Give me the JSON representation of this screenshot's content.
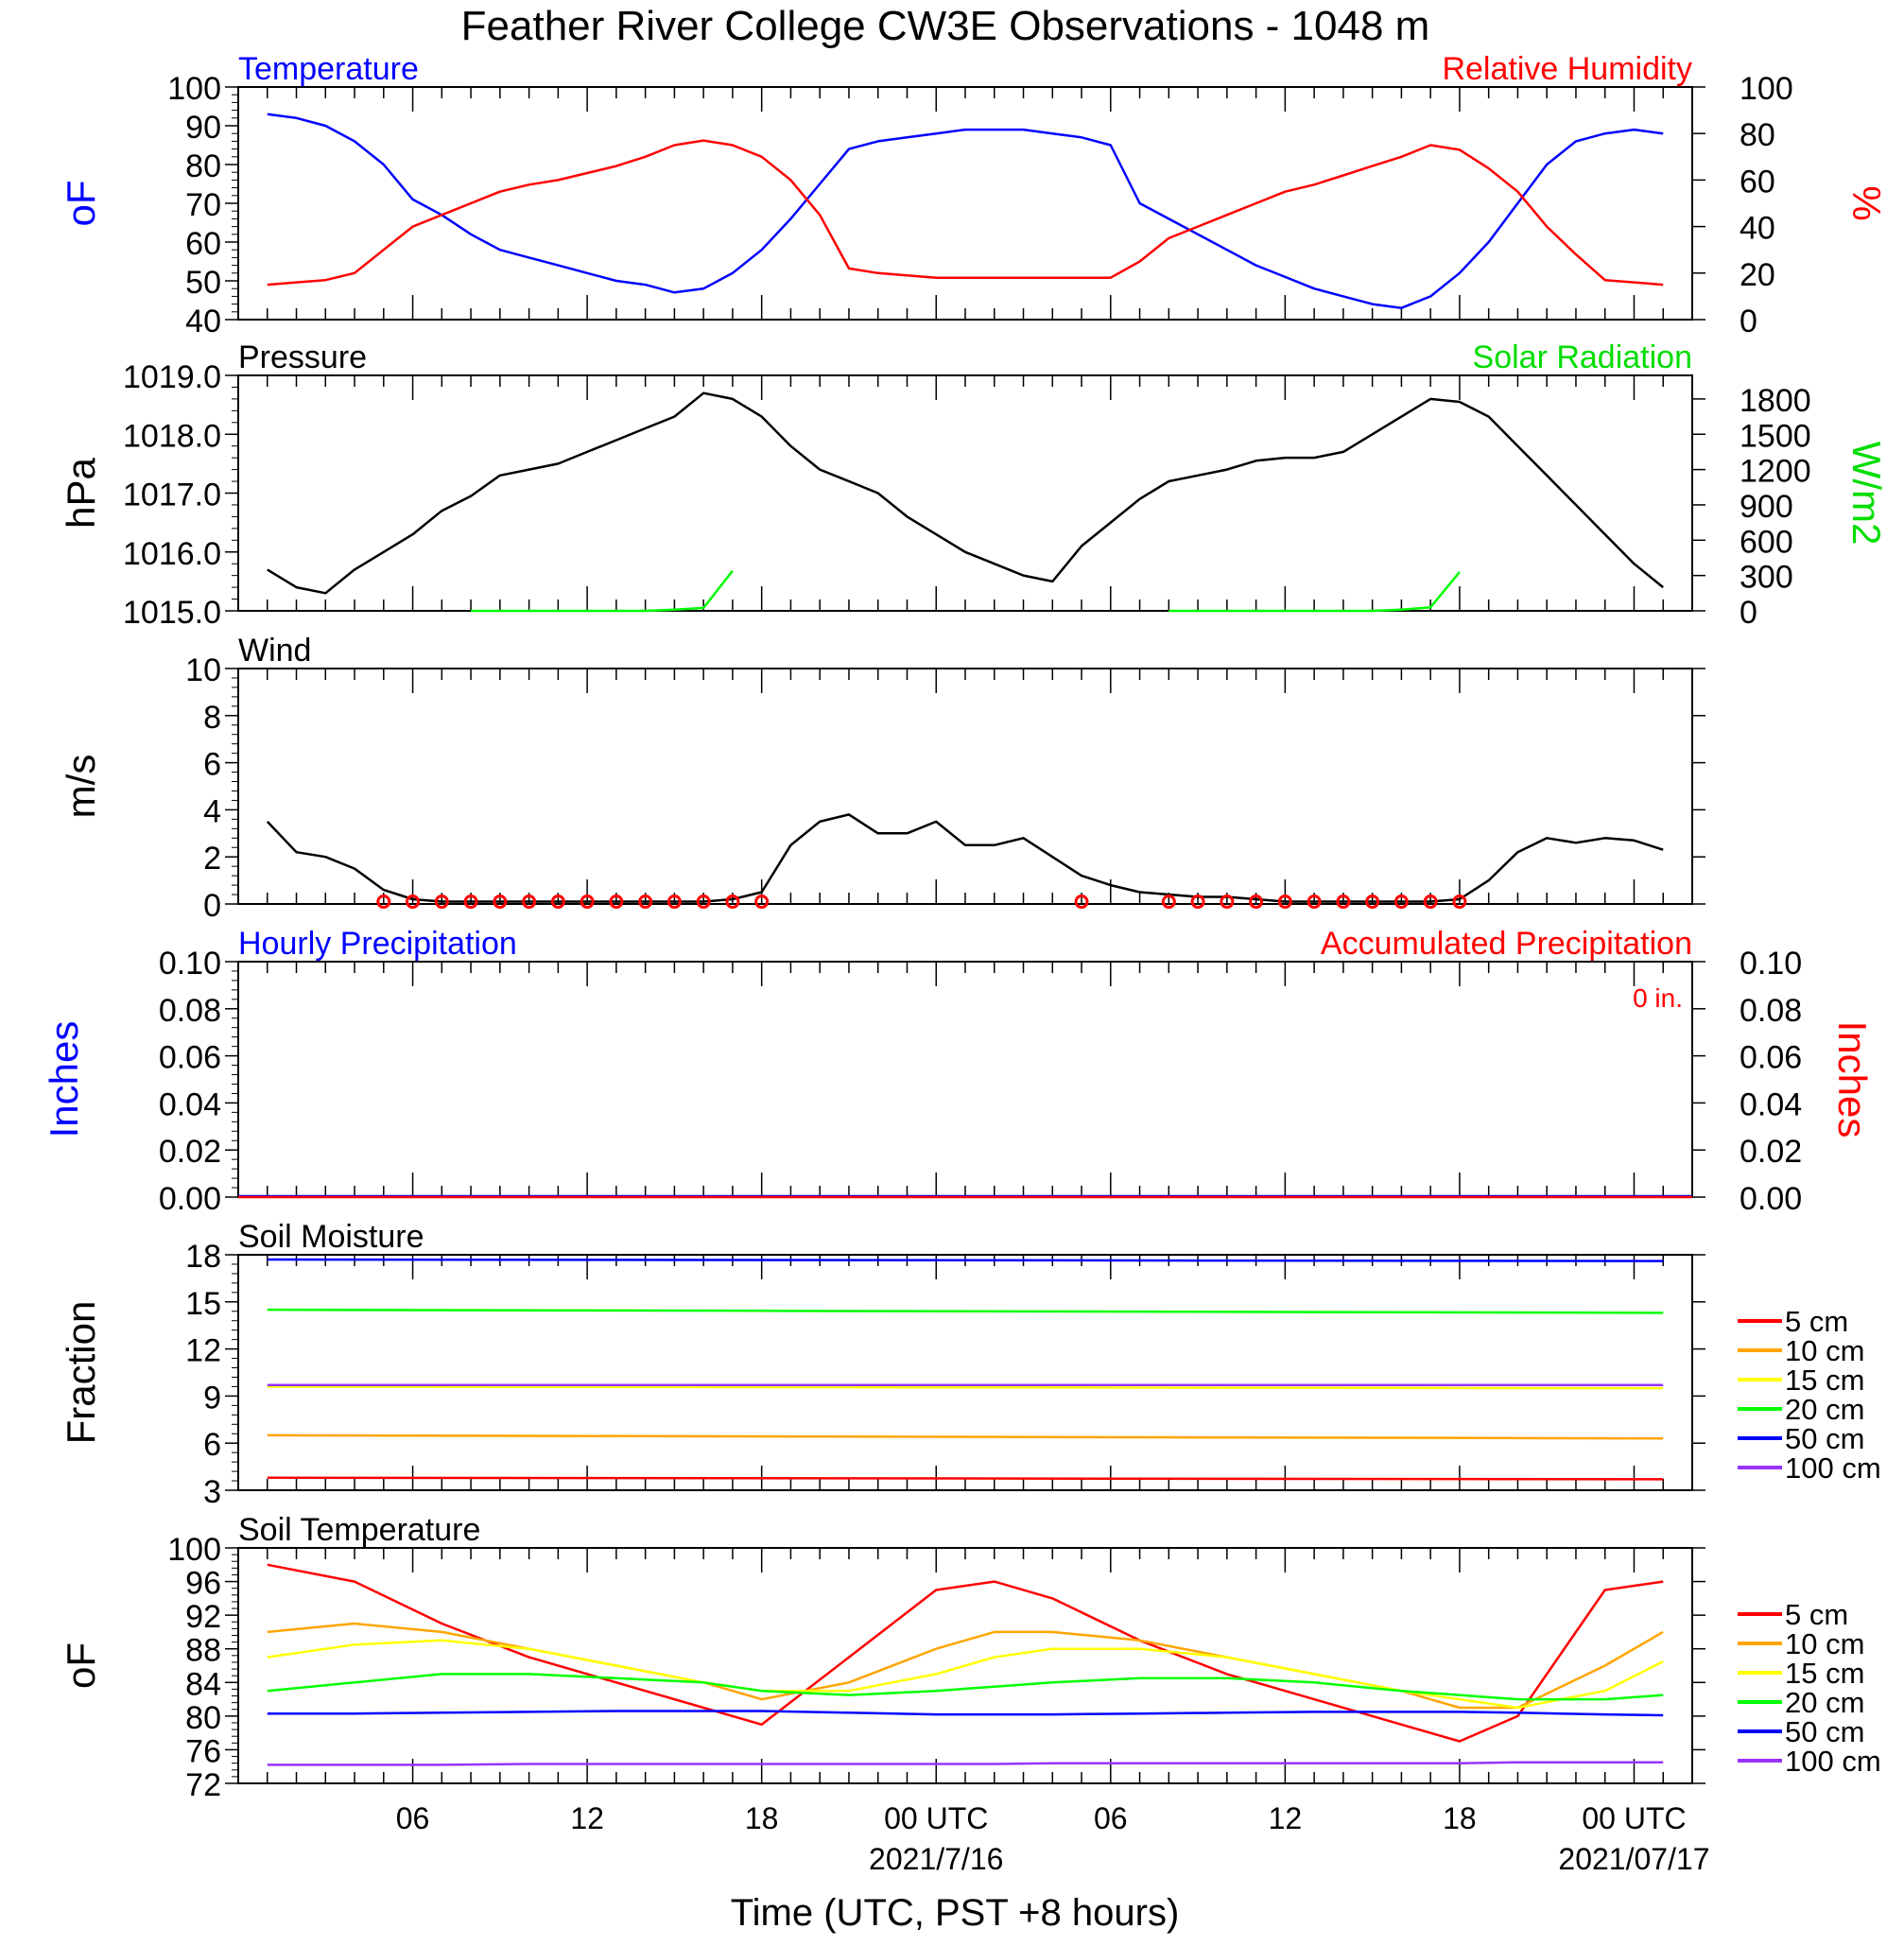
{
  "title": "Feather River College CW3E Observations - 1048 m",
  "x_axis": {
    "ticks": [
      "06",
      "12",
      "18",
      "00 UTC",
      "06",
      "12",
      "18",
      "00 UTC"
    ],
    "dates": [
      "2021/7/16",
      "2021/07/17"
    ],
    "label": "Time (UTC, PST +8 hours)"
  },
  "chart_data": [
    {
      "id": "temp_rh",
      "type": "line",
      "left_title": "Temperature",
      "right_title": "Relative Humidity",
      "left_ylabel": "oF",
      "right_ylabel": "%",
      "left_ylim": [
        40,
        100
      ],
      "right_ylim": [
        0,
        100
      ],
      "left_ticks": [
        "40",
        "50",
        "60",
        "70",
        "80",
        "90",
        "100"
      ],
      "right_ticks": [
        "0",
        "20",
        "40",
        "60",
        "80",
        "100"
      ],
      "x_hours": [
        1,
        2,
        3,
        4,
        5,
        6,
        7,
        8,
        9,
        10,
        11,
        12,
        13,
        14,
        15,
        16,
        17,
        18,
        19,
        20,
        21,
        22,
        23,
        24,
        25,
        26,
        27,
        28,
        29,
        30,
        31,
        32,
        33,
        34,
        35,
        36,
        37,
        38,
        39,
        40,
        41,
        42,
        43,
        44,
        45,
        46,
        47,
        48,
        49
      ],
      "series": [
        {
          "name": "Temperature",
          "color": "#0000ff",
          "axis": "left",
          "values": [
            93,
            92,
            90,
            86,
            80,
            71,
            67,
            62,
            58,
            56,
            54,
            52,
            50,
            49,
            47,
            48,
            52,
            58,
            66,
            75,
            84,
            86,
            87,
            88,
            89,
            89,
            89,
            88,
            87,
            85,
            70,
            66,
            62,
            58,
            54,
            51,
            48,
            46,
            44,
            43,
            46,
            52,
            60,
            70,
            80,
            86,
            88,
            89,
            88
          ]
        },
        {
          "name": "Relative Humidity",
          "color": "#ff0000",
          "axis": "right",
          "values": [
            15,
            16,
            17,
            20,
            30,
            40,
            45,
            50,
            55,
            58,
            60,
            63,
            66,
            70,
            75,
            77,
            75,
            70,
            60,
            45,
            22,
            20,
            19,
            18,
            18,
            18,
            18,
            18,
            18,
            18,
            25,
            35,
            40,
            45,
            50,
            55,
            58,
            62,
            66,
            70,
            75,
            73,
            65,
            55,
            40,
            28,
            17,
            16,
            15
          ]
        }
      ]
    },
    {
      "id": "pressure_solar",
      "type": "line",
      "left_title": "Pressure",
      "right_title": "Solar Radiation",
      "left_ylabel": "hPa",
      "right_ylabel": "W/m2",
      "left_ylim": [
        1015.0,
        1019.0
      ],
      "right_ylim": [
        0,
        2000
      ],
      "left_ticks": [
        "1015.0",
        "1016.0",
        "1017.0",
        "1018.0",
        "1019.0"
      ],
      "right_ticks": [
        "0",
        "300",
        "600",
        "900",
        "1200",
        "1500",
        "1800"
      ],
      "x_hours": [
        1,
        2,
        3,
        4,
        5,
        6,
        7,
        8,
        9,
        10,
        11,
        12,
        13,
        14,
        15,
        16,
        17,
        18,
        19,
        20,
        21,
        22,
        23,
        24,
        25,
        26,
        27,
        28,
        29,
        30,
        31,
        32,
        33,
        34,
        35,
        36,
        37,
        38,
        39,
        40,
        41,
        42,
        43,
        44,
        45,
        46,
        47,
        48,
        49
      ],
      "series": [
        {
          "name": "Pressure",
          "color": "#000000",
          "axis": "left",
          "values": [
            1015.7,
            1015.4,
            1015.3,
            1015.7,
            1016.0,
            1016.3,
            1016.7,
            1016.95,
            1017.3,
            1017.4,
            1017.5,
            1017.7,
            1017.9,
            1018.1,
            1018.3,
            1018.7,
            1018.6,
            1018.3,
            1017.8,
            1017.4,
            1017.2,
            1017.0,
            1016.6,
            1016.3,
            1016.0,
            1015.8,
            1015.6,
            1015.5,
            1016.1,
            1016.5,
            1016.9,
            1017.2,
            1017.3,
            1017.4,
            1017.55,
            1017.6,
            1017.6,
            1017.7,
            1018.0,
            1018.3,
            1018.6,
            1018.55,
            1018.3,
            1017.8,
            1017.3,
            1016.8,
            1016.3,
            1015.8,
            1015.4
          ]
        },
        {
          "name": "Solar Radiation",
          "color": "#00ff00",
          "axis": "right",
          "values": [
            null,
            null,
            null,
            null,
            null,
            null,
            null,
            0,
            0,
            0,
            0,
            0,
            0,
            0,
            10,
            25,
            340,
            null,
            null,
            null,
            null,
            null,
            null,
            null,
            null,
            null,
            null,
            null,
            null,
            null,
            null,
            0,
            0,
            0,
            0,
            0,
            0,
            0,
            0,
            10,
            30,
            330,
            null,
            null,
            null,
            null,
            null,
            null,
            null
          ]
        }
      ]
    },
    {
      "id": "wind",
      "type": "line",
      "left_title": "Wind",
      "left_ylabel": "m/s",
      "left_ylim": [
        0,
        10
      ],
      "left_ticks": [
        "0",
        "2",
        "4",
        "6",
        "8",
        "10"
      ],
      "x_hours": [
        1,
        2,
        3,
        4,
        5,
        6,
        7,
        8,
        9,
        10,
        11,
        12,
        13,
        14,
        15,
        16,
        17,
        18,
        19,
        20,
        21,
        22,
        23,
        24,
        25,
        26,
        27,
        28,
        29,
        30,
        31,
        32,
        33,
        34,
        35,
        36,
        37,
        38,
        39,
        40,
        41,
        42,
        43,
        44,
        45,
        46,
        47,
        48,
        49
      ],
      "series": [
        {
          "name": "Wind",
          "color": "#000000",
          "axis": "left",
          "values": [
            3.5,
            2.2,
            2.0,
            1.5,
            0.6,
            0.2,
            0.1,
            0.1,
            0.1,
            0.1,
            0.1,
            0.1,
            0.1,
            0.1,
            0.1,
            0.1,
            0.2,
            0.5,
            2.5,
            3.5,
            3.8,
            3.0,
            3.0,
            3.5,
            2.5,
            2.5,
            2.8,
            2.0,
            1.2,
            0.8,
            0.5,
            0.4,
            0.3,
            0.3,
            0.2,
            0.1,
            0.1,
            0.1,
            0.1,
            0.1,
            0.1,
            0.2,
            1.0,
            2.2,
            2.8,
            2.6,
            2.8,
            2.7,
            2.3
          ]
        }
      ],
      "calm_markers_hours": [
        5,
        6,
        7,
        8,
        9,
        10,
        11,
        12,
        13,
        14,
        15,
        16,
        17,
        18,
        29,
        32,
        33,
        34,
        35,
        36,
        37,
        38,
        39,
        40,
        41,
        42
      ]
    },
    {
      "id": "precip",
      "type": "bar",
      "left_title": "Hourly Precipitation",
      "right_title": "Accumulated Precipitation",
      "annotation": "0 in.",
      "left_ylabel": "Inches",
      "right_ylabel": "Inches",
      "left_ylim": [
        0,
        0.1
      ],
      "right_ylim": [
        0,
        0.1
      ],
      "left_ticks": [
        "0.00",
        "0.02",
        "0.04",
        "0.06",
        "0.08",
        "0.10"
      ],
      "right_ticks": [
        "0.00",
        "0.02",
        "0.04",
        "0.06",
        "0.08",
        "0.10"
      ],
      "series": [
        {
          "name": "Hourly Precipitation",
          "color": "#0000ff",
          "values": [
            0
          ]
        },
        {
          "name": "Accumulated Precipitation",
          "color": "#ff0000",
          "values": [
            0
          ]
        }
      ]
    },
    {
      "id": "soil_moisture",
      "type": "line",
      "left_title": "Soil Moisture",
      "left_ylabel": "Fraction",
      "left_ylim": [
        3,
        18
      ],
      "left_ticks": [
        "3",
        "6",
        "9",
        "12",
        "15",
        "18"
      ],
      "x_hours": [
        1,
        49
      ],
      "series": [
        {
          "name": "5 cm",
          "color": "#ff0000",
          "values": [
            3.8,
            3.7
          ]
        },
        {
          "name": "10 cm",
          "color": "#ffa500",
          "values": [
            6.5,
            6.3
          ]
        },
        {
          "name": "15 cm",
          "color": "#ffff00",
          "values": [
            9.6,
            9.5
          ]
        },
        {
          "name": "20 cm",
          "color": "#00ff00",
          "values": [
            14.5,
            14.3
          ]
        },
        {
          "name": "50 cm",
          "color": "#0000ff",
          "values": [
            17.7,
            17.6
          ]
        },
        {
          "name": "100 cm",
          "color": "#9933ff",
          "values": [
            9.7,
            9.7
          ]
        }
      ],
      "legend": [
        "5 cm",
        "10 cm",
        "15 cm",
        "20 cm",
        "50 cm",
        "100 cm"
      ]
    },
    {
      "id": "soil_temp",
      "type": "line",
      "left_title": "Soil Temperature",
      "left_ylabel": "oF",
      "left_ylim": [
        72,
        100
      ],
      "left_ticks": [
        "72",
        "76",
        "80",
        "84",
        "88",
        "92",
        "96",
        "100"
      ],
      "x_hours": [
        1,
        4,
        7,
        10,
        13,
        16,
        18,
        21,
        24,
        26,
        28,
        31,
        34,
        37,
        40,
        42,
        44,
        47,
        49
      ],
      "series": [
        {
          "name": "5 cm",
          "color": "#ff0000",
          "values": [
            98,
            96,
            91,
            87,
            84,
            81,
            79,
            87,
            95,
            96,
            94,
            89,
            85,
            82,
            79,
            77,
            80,
            95,
            96
          ]
        },
        {
          "name": "10 cm",
          "color": "#ffa500",
          "values": [
            90,
            91,
            90,
            88,
            86,
            84,
            82,
            84,
            88,
            90,
            90,
            89,
            87,
            85,
            83,
            81,
            81,
            86,
            90
          ]
        },
        {
          "name": "15 cm",
          "color": "#ffff00",
          "values": [
            87,
            88.5,
            89,
            88,
            86,
            84,
            83,
            83,
            85,
            87,
            88,
            88,
            87,
            85,
            83,
            82,
            81,
            83,
            86.5
          ]
        },
        {
          "name": "20 cm",
          "color": "#00ff00",
          "values": [
            83,
            84,
            85,
            85,
            84.5,
            84,
            83,
            82.5,
            83,
            83.5,
            84,
            84.5,
            84.5,
            84,
            83,
            82.5,
            82,
            82,
            82.5
          ]
        },
        {
          "name": "50 cm",
          "color": "#0000ff",
          "values": [
            80.3,
            80.3,
            80.4,
            80.5,
            80.6,
            80.6,
            80.6,
            80.4,
            80.2,
            80.2,
            80.2,
            80.3,
            80.4,
            80.5,
            80.5,
            80.5,
            80.4,
            80.2,
            80.1
          ]
        },
        {
          "name": "100 cm",
          "color": "#9933ff",
          "values": [
            74.2,
            74.2,
            74.2,
            74.3,
            74.3,
            74.3,
            74.3,
            74.3,
            74.3,
            74.3,
            74.4,
            74.4,
            74.4,
            74.4,
            74.4,
            74.4,
            74.5,
            74.5,
            74.5
          ]
        }
      ],
      "legend": [
        "5 cm",
        "10 cm",
        "15 cm",
        "20 cm",
        "50 cm",
        "100 cm"
      ]
    }
  ]
}
